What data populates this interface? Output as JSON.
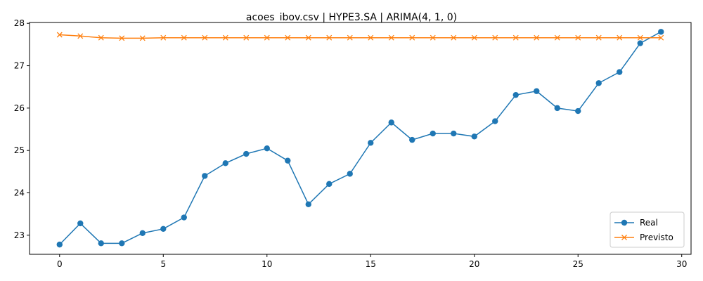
{
  "chart_data": {
    "type": "line",
    "title": "acoes_ibov.csv | HYPE3.SA | ARIMA(4, 1, 0)",
    "xlabel": "",
    "ylabel": "",
    "xlim": [
      -1.45,
      30.45
    ],
    "ylim": [
      22.55,
      28.02
    ],
    "xticks": [
      0,
      5,
      10,
      15,
      20,
      25,
      30
    ],
    "yticks": [
      23,
      24,
      25,
      26,
      27,
      28
    ],
    "grid": false,
    "legend_position": "lower right",
    "x": [
      0,
      1,
      2,
      3,
      4,
      5,
      6,
      7,
      8,
      9,
      10,
      11,
      12,
      13,
      14,
      15,
      16,
      17,
      18,
      19,
      20,
      21,
      22,
      23,
      24,
      25,
      26,
      27,
      28,
      29
    ],
    "series": [
      {
        "name": "Real",
        "color": "#1f77b4",
        "marker": "circle",
        "values": [
          22.78,
          23.28,
          22.81,
          22.81,
          23.05,
          23.15,
          23.42,
          24.4,
          24.7,
          24.92,
          25.05,
          24.76,
          23.73,
          24.21,
          24.45,
          25.18,
          25.66,
          25.25,
          25.4,
          25.4,
          25.33,
          25.69,
          26.31,
          26.4,
          26.0,
          25.93,
          26.59,
          26.85,
          27.53,
          27.8
        ]
      },
      {
        "name": "Previsto",
        "color": "#ff7f0e",
        "marker": "x",
        "values": [
          27.73,
          27.7,
          27.66,
          27.65,
          27.65,
          27.66,
          27.66,
          27.66,
          27.66,
          27.66,
          27.66,
          27.66,
          27.66,
          27.66,
          27.66,
          27.66,
          27.66,
          27.66,
          27.66,
          27.66,
          27.66,
          27.66,
          27.66,
          27.66,
          27.66,
          27.66,
          27.66,
          27.66,
          27.66,
          27.66
        ]
      }
    ]
  }
}
